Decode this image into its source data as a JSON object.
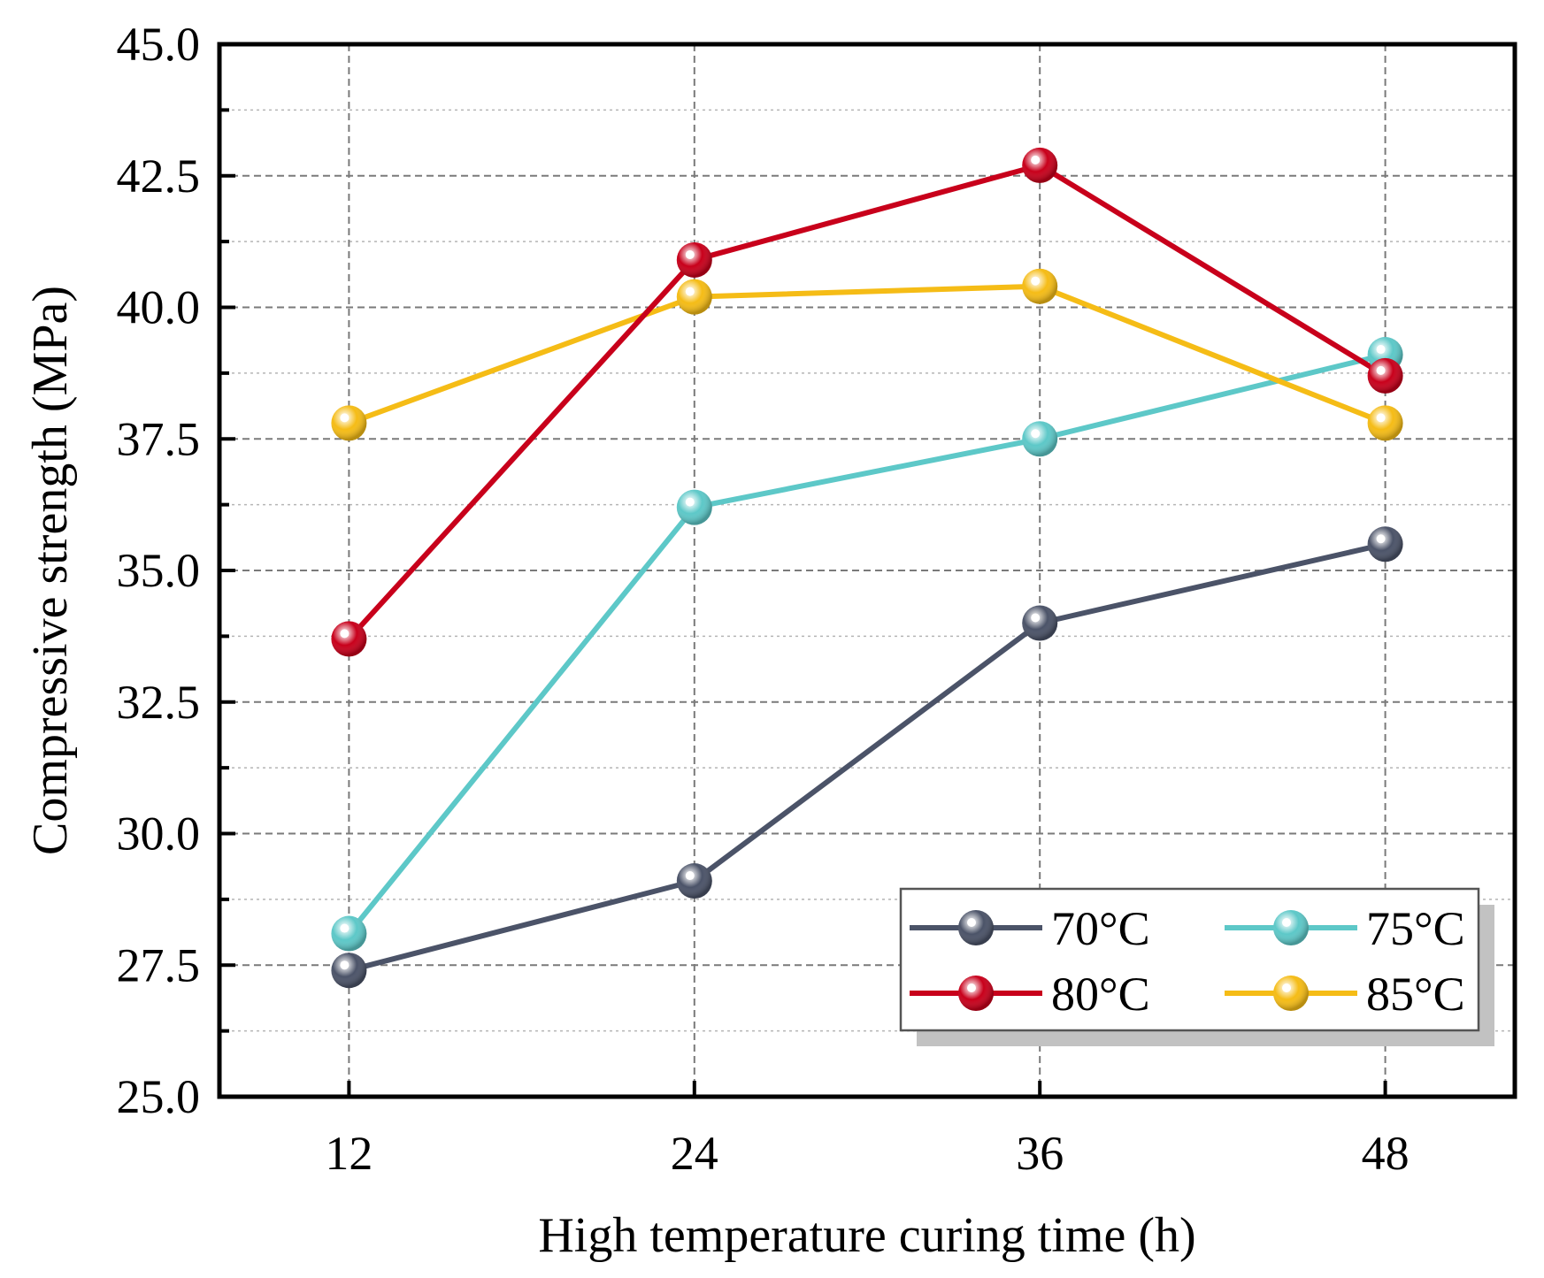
{
  "chart_data": {
    "type": "line",
    "title": "",
    "xlabel": "High temperature curing time (h)",
    "ylabel": "Compressive strength (MPa)",
    "x": [
      12,
      24,
      36,
      48
    ],
    "x_tick_labels": [
      "12",
      "24",
      "36",
      "48"
    ],
    "xlim": [
      7.5,
      52.5
    ],
    "ylim": [
      25.0,
      45.0
    ],
    "y_tick_labels": [
      "25.0",
      "27.5",
      "30.0",
      "32.5",
      "35.0",
      "37.5",
      "40.0",
      "42.5",
      "45.0"
    ],
    "grid": true,
    "legend_position": "bottom-right",
    "series": [
      {
        "name": "70°C",
        "color": "#4b5368",
        "values": [
          27.4,
          29.1,
          34.0,
          35.5
        ]
      },
      {
        "name": "75°C",
        "color": "#5dc8c8",
        "values": [
          28.1,
          36.2,
          37.5,
          39.1
        ]
      },
      {
        "name": "80°C",
        "color": "#c8001b",
        "values": [
          33.7,
          40.9,
          42.7,
          38.7
        ]
      },
      {
        "name": "85°C",
        "color": "#f5bc16",
        "values": [
          37.8,
          40.2,
          40.4,
          37.8
        ]
      }
    ]
  }
}
